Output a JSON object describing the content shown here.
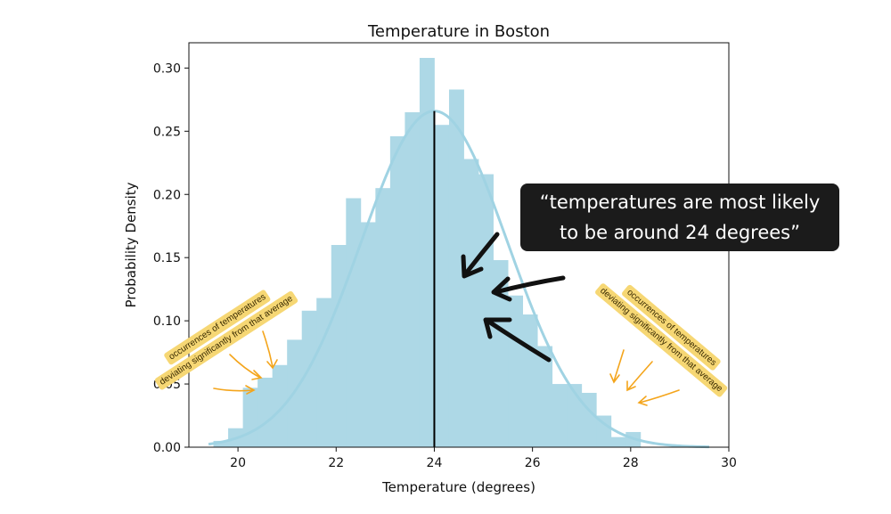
{
  "chart_data": {
    "type": "bar",
    "title": "Temperature in Boston",
    "xlabel": "Temperature (degrees)",
    "ylabel": "Probability Density",
    "xlim": [
      19,
      30
    ],
    "ylim": [
      0,
      0.32
    ],
    "xticks": [
      "20",
      "22",
      "24",
      "26",
      "28",
      "30"
    ],
    "xtick_values": [
      20,
      22,
      24,
      26,
      28,
      30
    ],
    "yticks": [
      "0.00",
      "0.05",
      "0.10",
      "0.15",
      "0.20",
      "0.25",
      "0.30"
    ],
    "ytick_values": [
      0,
      0.05,
      0.1,
      0.15,
      0.2,
      0.25,
      0.3
    ],
    "bin_edges": [
      19.5,
      19.8,
      20.1,
      20.4,
      20.7,
      21.0,
      21.3,
      21.6,
      21.9,
      22.2,
      22.5,
      22.8,
      23.1,
      23.4,
      23.7,
      24.0,
      24.3,
      24.6,
      24.9,
      25.2,
      25.5,
      25.8,
      26.1,
      26.4,
      26.7,
      27.0,
      27.3,
      27.6,
      27.9,
      28.2,
      28.5
    ],
    "bin_values": [
      0.005,
      0.015,
      0.047,
      0.055,
      0.065,
      0.085,
      0.108,
      0.118,
      0.16,
      0.197,
      0.178,
      0.205,
      0.246,
      0.265,
      0.308,
      0.255,
      0.283,
      0.228,
      0.216,
      0.148,
      0.12,
      0.105,
      0.08,
      0.05,
      0.05,
      0.043,
      0.025,
      0.008,
      0.012,
      0.0
    ],
    "fit_curve": {
      "type": "normal",
      "mean": 24,
      "std": 1.5,
      "x_range": [
        19.4,
        29.6
      ]
    },
    "mean_line": {
      "x": 24,
      "y_top": 0.266
    },
    "grid": false,
    "colors": {
      "bars": "#add8e6",
      "curve": "#a0d3e3",
      "mean_line": "#000000",
      "callout_bg": "#1b1b1b",
      "note_bg": "#f6d774",
      "note_arrow": "#f4a51c"
    },
    "annotations": {
      "callout_line1": "“temperatures are most likely",
      "callout_line2": "to be around 24 degrees”",
      "note_left_line1": "occurrences of temperatures",
      "note_left_line2": "deviating significantly from that average",
      "note_right_line1": "occurrences of temperatures",
      "note_right_line2": "deviating significantly from that average"
    }
  }
}
